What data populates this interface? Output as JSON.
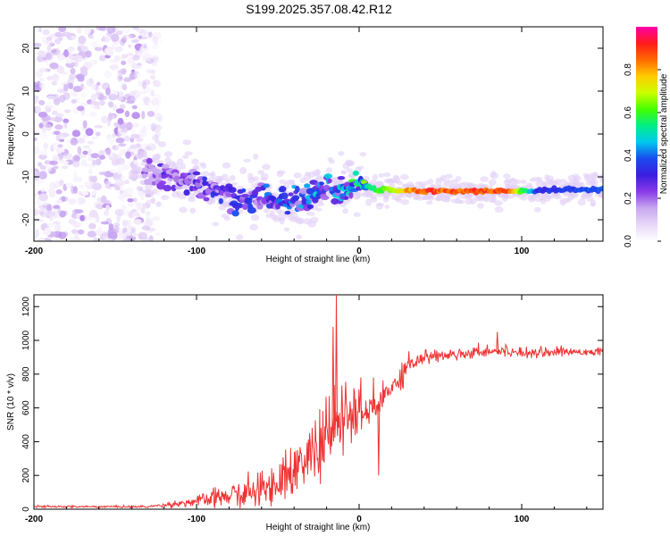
{
  "title": "S199.2025.357.08.42.R12",
  "colors": {
    "axis": "#000000",
    "snr_line": "#ee3333",
    "colormap": [
      "#ffffff",
      "#e8d8f8",
      "#c8a8f0",
      "#8a3ae8",
      "#3b1de0",
      "#1a4aee",
      "#00c8ee",
      "#00ee88",
      "#44ff00",
      "#ccff00",
      "#ffcc00",
      "#ff6a00",
      "#ff1a1a",
      "#ff00aa"
    ]
  },
  "chart_data": [
    {
      "type": "heatmap",
      "xlabel": "Height of straight line (km)",
      "ylabel": "Frequency (Hz)",
      "xlim": [
        -200,
        150
      ],
      "ylim": [
        -25,
        25
      ],
      "x_ticks": [
        "-200",
        "-100",
        "0",
        "100"
      ],
      "y_ticks": [
        "20",
        "10",
        "0",
        "-10",
        "-20"
      ],
      "colorbar": {
        "label": "Normalized spectral amplitude",
        "range": [
          0,
          1
        ],
        "ticks": [
          "0.0",
          "0.2",
          "0.4",
          "0.6",
          "0.8"
        ]
      },
      "noise_region": {
        "x_range": [
          -200,
          -130
        ],
        "y_range": [
          -25,
          25
        ],
        "amplitude": 0.1
      },
      "band_center": [
        {
          "x": -130,
          "y": -9
        },
        {
          "x": -110,
          "y": -10
        },
        {
          "x": -90,
          "y": -13
        },
        {
          "x": -75,
          "y": -16
        },
        {
          "x": -60,
          "y": -14.5
        },
        {
          "x": -45,
          "y": -16
        },
        {
          "x": -30,
          "y": -15
        },
        {
          "x": -20,
          "y": -12.5
        },
        {
          "x": -10,
          "y": -13.5
        },
        {
          "x": 0,
          "y": -11
        },
        {
          "x": 10,
          "y": -13
        },
        {
          "x": 40,
          "y": -13.3
        },
        {
          "x": 100,
          "y": -13.3
        },
        {
          "x": 150,
          "y": -12.8
        }
      ],
      "band_amplitude": [
        {
          "x": -130,
          "a": 0.2
        },
        {
          "x": -100,
          "a": 0.25
        },
        {
          "x": -60,
          "a": 0.3
        },
        {
          "x": -20,
          "a": 0.35
        },
        {
          "x": 0,
          "a": 0.45
        },
        {
          "x": 20,
          "a": 0.7
        },
        {
          "x": 40,
          "a": 0.9
        },
        {
          "x": 90,
          "a": 0.9
        },
        {
          "x": 110,
          "a": 0.35
        },
        {
          "x": 150,
          "a": 0.4
        }
      ]
    },
    {
      "type": "line",
      "xlabel": "Height of straight line (km)",
      "ylabel": "SNR (10 * v/v)",
      "xlim": [
        -200,
        150
      ],
      "ylim": [
        0,
        1270
      ],
      "x_ticks": [
        "-200",
        "-100",
        "0",
        "100"
      ],
      "y_ticks": [
        "0",
        "200",
        "400",
        "600",
        "800",
        "1000",
        "1200"
      ],
      "series": [
        {
          "name": "SNR",
          "color": "#ee3333",
          "envelope": [
            {
              "x": -200,
              "mean": 15,
              "noise": 6
            },
            {
              "x": -130,
              "mean": 15,
              "noise": 6
            },
            {
              "x": -120,
              "mean": 25,
              "noise": 10
            },
            {
              "x": -100,
              "mean": 45,
              "noise": 30
            },
            {
              "x": -80,
              "mean": 80,
              "noise": 70
            },
            {
              "x": -60,
              "mean": 110,
              "noise": 90
            },
            {
              "x": -40,
              "mean": 230,
              "noise": 150
            },
            {
              "x": -20,
              "mean": 420,
              "noise": 200
            },
            {
              "x": -10,
              "mean": 550,
              "noise": 200
            },
            {
              "x": 0,
              "mean": 560,
              "noise": 150
            },
            {
              "x": 10,
              "mean": 600,
              "noise": 120
            },
            {
              "x": 20,
              "mean": 720,
              "noise": 90
            },
            {
              "x": 30,
              "mean": 860,
              "noise": 60
            },
            {
              "x": 40,
              "mean": 900,
              "noise": 40
            },
            {
              "x": 60,
              "mean": 920,
              "noise": 30
            },
            {
              "x": 80,
              "mean": 940,
              "noise": 35
            },
            {
              "x": 100,
              "mean": 930,
              "noise": 30
            },
            {
              "x": 150,
              "mean": 935,
              "noise": 20
            }
          ],
          "spikes": [
            {
              "x": -14,
              "y": 1270
            },
            {
              "x": -16,
              "y": 1080
            },
            {
              "x": 85,
              "y": 1050
            },
            {
              "x": 12,
              "y": 200
            }
          ]
        }
      ]
    }
  ]
}
